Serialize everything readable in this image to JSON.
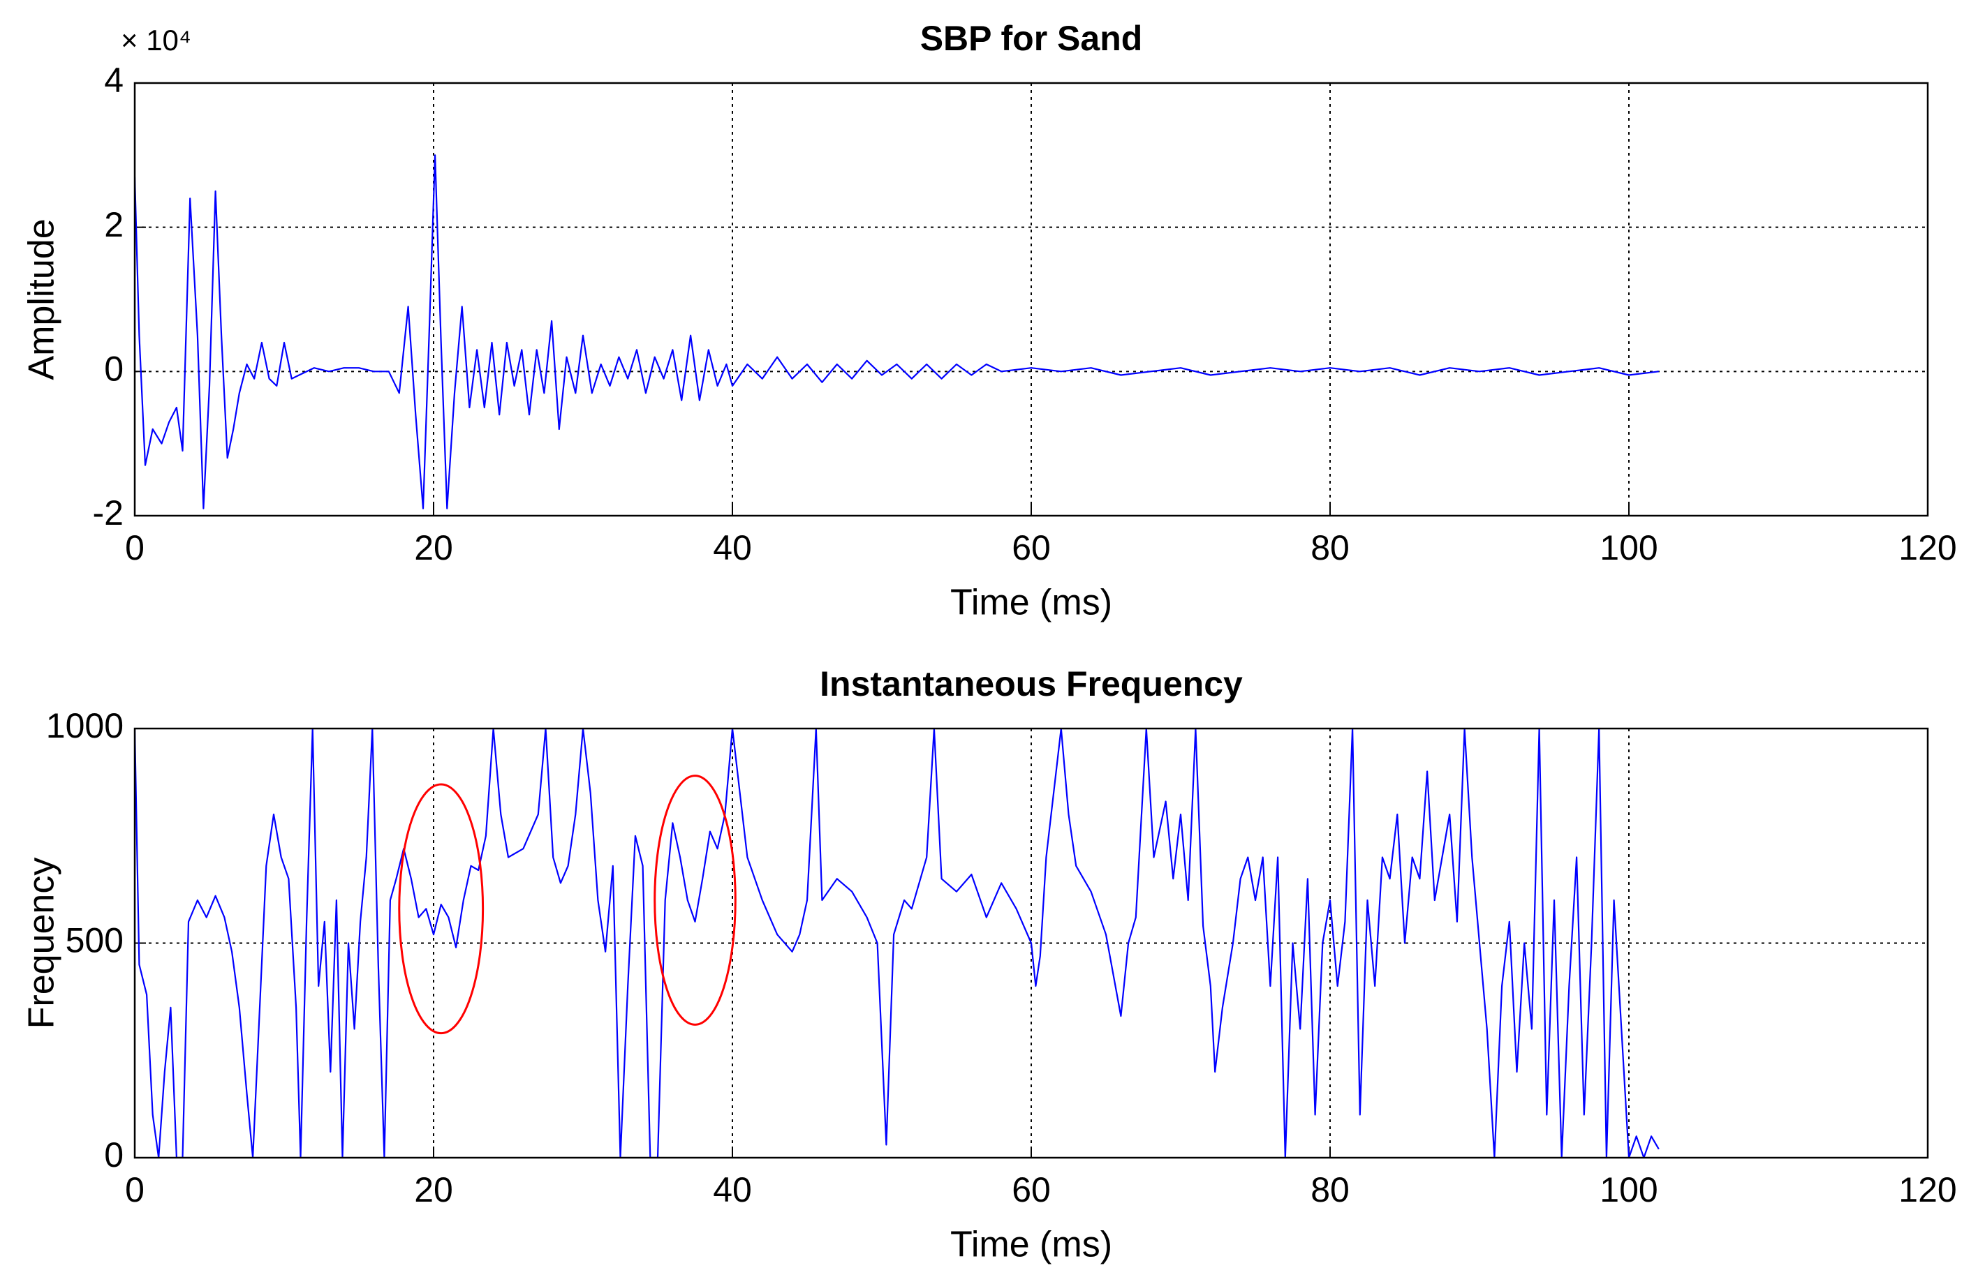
{
  "chart_data": [
    {
      "type": "line",
      "title": "SBP for Sand",
      "xlabel": "Time (ms)",
      "ylabel": "Amplitude",
      "axis_multiplier": "× 10⁴",
      "color": "#0000ff",
      "grid": true,
      "xlim": [
        0,
        120
      ],
      "xticks": [
        0,
        20,
        40,
        60,
        80,
        100,
        120
      ],
      "ylim": [
        -2,
        4
      ],
      "yticks": [
        -2,
        0,
        2,
        4
      ],
      "x": [
        0,
        0.3,
        0.7,
        1.2,
        1.8,
        2.3,
        2.8,
        3.2,
        3.7,
        4.2,
        4.6,
        5.0,
        5.4,
        5.8,
        6.2,
        6.6,
        7.0,
        7.5,
        8.0,
        8.5,
        9.0,
        9.5,
        10.0,
        10.5,
        11,
        12,
        13,
        14,
        15,
        16,
        17,
        17.7,
        18.3,
        18.8,
        19.3,
        19.7,
        20.1,
        20.5,
        20.9,
        21.4,
        21.9,
        22.4,
        22.9,
        23.4,
        23.9,
        24.4,
        24.9,
        25.4,
        25.9,
        26.4,
        26.9,
        27.4,
        27.9,
        28.4,
        28.9,
        29.5,
        30,
        30.6,
        31.2,
        31.8,
        32.4,
        33,
        33.6,
        34.2,
        34.8,
        35.4,
        36,
        36.6,
        37.2,
        37.8,
        38.4,
        39,
        39.6,
        40,
        41,
        42,
        43,
        44,
        45,
        46,
        47,
        48,
        49,
        50,
        51,
        52,
        53,
        54,
        55,
        56,
        57,
        58,
        60,
        62,
        64,
        66,
        68,
        70,
        72,
        74,
        76,
        78,
        80,
        82,
        84,
        86,
        88,
        90,
        92,
        94,
        96,
        98,
        100,
        102
      ],
      "values": [
        2.7,
        0.5,
        -1.3,
        -0.8,
        -1.0,
        -0.7,
        -0.5,
        -1.1,
        2.4,
        0.5,
        -1.9,
        -0.2,
        2.5,
        0.5,
        -1.2,
        -0.8,
        -0.3,
        0.1,
        -0.1,
        0.4,
        -0.1,
        -0.2,
        0.4,
        -0.1,
        -0.05,
        0.05,
        0,
        0.05,
        0.05,
        0,
        0,
        -0.3,
        0.9,
        -0.6,
        -1.9,
        0.5,
        3.0,
        0.4,
        -1.9,
        -0.3,
        0.9,
        -0.5,
        0.3,
        -0.5,
        0.4,
        -0.6,
        0.4,
        -0.2,
        0.3,
        -0.6,
        0.3,
        -0.3,
        0.7,
        -0.8,
        0.2,
        -0.3,
        0.5,
        -0.3,
        0.1,
        -0.2,
        0.2,
        -0.1,
        0.3,
        -0.3,
        0.2,
        -0.1,
        0.3,
        -0.4,
        0.5,
        -0.4,
        0.3,
        -0.2,
        0.1,
        -0.2,
        0.1,
        -0.1,
        0.2,
        -0.1,
        0.1,
        -0.15,
        0.1,
        -0.1,
        0.15,
        -0.05,
        0.1,
        -0.1,
        0.1,
        -0.1,
        0.1,
        -0.05,
        0.1,
        0,
        0.05,
        0,
        0.05,
        -0.05,
        0,
        0.05,
        -0.05,
        0,
        0.05,
        0,
        0.05,
        0,
        0.05,
        -0.05,
        0.05,
        0,
        0.05,
        -0.05,
        0,
        0.05,
        -0.05,
        0
      ]
    },
    {
      "type": "line",
      "title": "Instantaneous Frequency",
      "xlabel": "Time (ms)",
      "ylabel": "Frequency",
      "color": "#0000ff",
      "grid": true,
      "xlim": [
        0,
        120
      ],
      "xticks": [
        0,
        20,
        40,
        60,
        80,
        100,
        120
      ],
      "ylim": [
        0,
        1000
      ],
      "yticks": [
        0,
        500,
        1000
      ],
      "highlights": [
        {
          "x": 20.5,
          "y": 580,
          "rx": 2.8,
          "ry": 290,
          "color": "#ff0000"
        },
        {
          "x": 37.5,
          "y": 600,
          "rx": 2.7,
          "ry": 290,
          "color": "#ff0000"
        }
      ],
      "x": [
        0,
        0.3,
        0.8,
        1.2,
        1.6,
        2.0,
        2.4,
        2.8,
        3.2,
        3.6,
        4.2,
        4.8,
        5.4,
        6.0,
        6.5,
        7.0,
        7.5,
        7.9,
        8.3,
        8.8,
        9.3,
        9.8,
        10.3,
        10.8,
        11.1,
        11.5,
        11.9,
        12.3,
        12.7,
        13.1,
        13.5,
        13.9,
        14.3,
        14.7,
        15.1,
        15.5,
        15.9,
        16.3,
        16.7,
        17.1,
        17.5,
        18.0,
        18.5,
        19.0,
        19.5,
        20.0,
        20.5,
        21.0,
        21.5,
        22,
        22.5,
        23,
        23.5,
        24,
        24.5,
        25,
        26,
        27,
        27.5,
        28,
        28.5,
        29,
        29.5,
        30,
        30.5,
        31,
        31.5,
        32,
        32.5,
        33,
        33.5,
        34,
        34.5,
        35,
        35.5,
        36,
        36.5,
        37,
        37.5,
        38,
        38.5,
        39,
        39.5,
        40,
        41,
        42,
        43,
        44,
        44.5,
        45,
        45.6,
        46,
        47,
        48,
        49,
        49.7,
        50.3,
        50.8,
        51.5,
        52,
        53,
        53.5,
        54,
        55,
        56,
        57,
        58,
        59,
        60,
        60.3,
        60.6,
        61,
        62,
        62.5,
        63,
        64,
        65,
        66,
        66.5,
        67,
        67.7,
        68.2,
        69,
        69.5,
        70,
        70.5,
        71,
        71.5,
        72,
        72.3,
        72.8,
        73.5,
        74,
        74.5,
        75,
        75.5,
        76,
        76.5,
        77,
        77.5,
        78,
        78.5,
        79,
        79.5,
        80,
        80.5,
        81,
        81.5,
        82,
        82.5,
        83,
        83.5,
        84,
        84.5,
        85,
        85.5,
        86,
        86.5,
        87,
        87.5,
        88,
        88.5,
        89,
        89.5,
        90,
        90.5,
        91,
        91.5,
        92,
        92.5,
        93,
        93.5,
        94,
        94.5,
        95,
        95.5,
        96,
        96.5,
        97,
        97.5,
        98,
        98.5,
        99,
        99.5,
        100,
        100.5,
        101,
        101.5,
        102
      ],
      "values": [
        1000,
        450,
        380,
        100,
        0,
        200,
        350,
        0,
        0,
        550,
        600,
        560,
        610,
        560,
        480,
        350,
        150,
        0,
        300,
        680,
        800,
        700,
        650,
        350,
        0,
        550,
        1000,
        400,
        550,
        200,
        600,
        0,
        500,
        300,
        550,
        700,
        1000,
        450,
        0,
        600,
        650,
        720,
        650,
        560,
        580,
        520,
        590,
        560,
        490,
        600,
        680,
        670,
        750,
        1000,
        800,
        700,
        720,
        800,
        1000,
        700,
        640,
        680,
        800,
        1000,
        850,
        600,
        480,
        680,
        0,
        400,
        750,
        680,
        0,
        0,
        600,
        780,
        700,
        600,
        550,
        650,
        760,
        720,
        800,
        1000,
        700,
        600,
        520,
        480,
        520,
        600,
        1000,
        600,
        650,
        620,
        560,
        500,
        30,
        520,
        600,
        580,
        700,
        1000,
        650,
        620,
        660,
        560,
        640,
        580,
        500,
        400,
        470,
        700,
        1000,
        800,
        680,
        620,
        520,
        330,
        500,
        560,
        1000,
        700,
        830,
        650,
        800,
        600,
        1000,
        540,
        400,
        200,
        350,
        500,
        650,
        700,
        600,
        700,
        400,
        700,
        0,
        500,
        300,
        650,
        100,
        500,
        600,
        400,
        550,
        1000,
        100,
        600,
        400,
        700,
        650,
        800,
        500,
        700,
        650,
        900,
        600,
        700,
        800,
        550,
        1000,
        700,
        500,
        300,
        0,
        400,
        550,
        200,
        500,
        300,
        1000,
        100,
        600,
        0,
        400,
        700,
        100,
        500,
        1000,
        0,
        600,
        300,
        0,
        50,
        0,
        50,
        20
      ]
    }
  ]
}
